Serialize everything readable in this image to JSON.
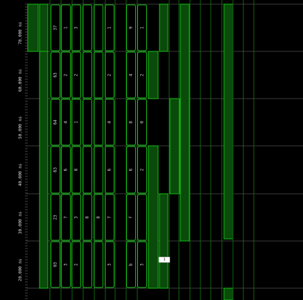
{
  "app": {
    "view": "waveform viewer (rotated 90°)"
  },
  "timeline": {
    "labels": [
      "70.000 ns",
      "60.000 ns",
      "50.000 ns",
      "40.000 ns",
      "30.000 ns",
      "20.000 ns"
    ]
  },
  "signals": [
    {
      "name": "",
      "values": []
    },
    {
      "name": "",
      "values": []
    },
    {
      "name": "",
      "values": [
        "37",
        "63",
        "64",
        "63",
        "23",
        "03"
      ]
    },
    {
      "name": "",
      "values": [
        "1",
        "2",
        "4",
        "6",
        "7",
        "3"
      ]
    },
    {
      "name": "",
      "values": [
        "3",
        "2",
        "1",
        "8",
        "3",
        "2"
      ]
    },
    {
      "name": "",
      "values": [
        "",
        "",
        "",
        "",
        "8",
        ""
      ]
    },
    {
      "name": "",
      "values": [
        "",
        "",
        "",
        "",
        "8",
        ""
      ]
    },
    {
      "name": "",
      "values": [
        "1",
        "2",
        "4",
        "6",
        "7",
        "3"
      ]
    },
    {
      "name": "",
      "values": [
        "9",
        "4",
        "8",
        "6",
        "f",
        "b"
      ]
    },
    {
      "name": "",
      "values": [
        "1",
        "2",
        "0",
        "2",
        "",
        "3"
      ]
    }
  ],
  "cursor": {
    "marker_text": "1"
  },
  "colors": {
    "background": "#000000",
    "wave": "#13c313",
    "wave_fill": "#0a4a0a",
    "bright": "#2ee62e",
    "grid": "#3b3b3b",
    "text": "#d7d7d7"
  }
}
